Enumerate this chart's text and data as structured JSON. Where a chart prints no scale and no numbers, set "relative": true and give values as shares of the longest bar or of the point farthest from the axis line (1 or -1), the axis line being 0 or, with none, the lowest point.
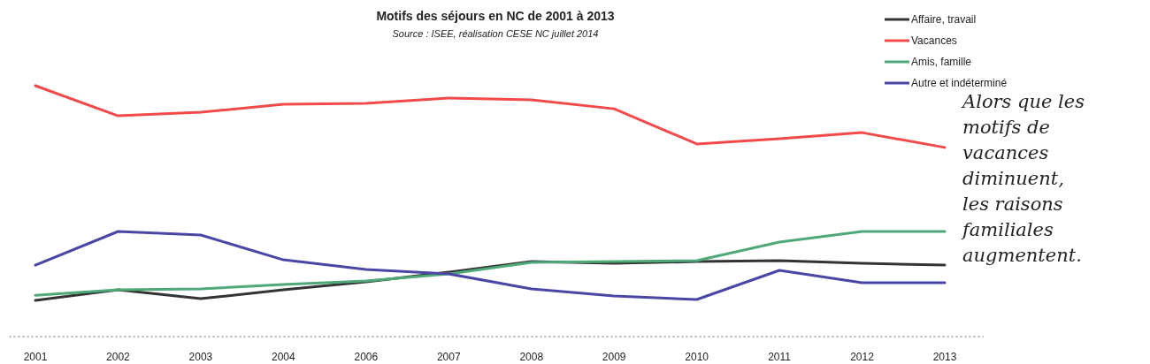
{
  "chart_data": {
    "type": "line",
    "title": "Motifs des séjours en NC de 2001 à 2013",
    "subtitle": "Source : ISEE, réalisation CESE NC juillet 2014",
    "categories": [
      "2001",
      "2002",
      "2003",
      "2004",
      "2006",
      "2007",
      "2008",
      "2009",
      "2010",
      "2011",
      "2012",
      "2013"
    ],
    "relative": true,
    "legend": "top right",
    "grid": false,
    "marker": "none",
    "line_style": "solid",
    "series": [
      {
        "name": "Affaire, travail",
        "color": "#333333",
        "values": [
          0.144,
          0.187,
          0.151,
          0.187,
          0.218,
          0.257,
          0.299,
          0.292,
          0.299,
          0.303,
          0.292,
          0.285
        ]
      },
      {
        "name": "Vacances",
        "color": "#f24a4a",
        "values": [
          1,
          0.88,
          0.894,
          0.926,
          0.93,
          0.951,
          0.944,
          0.908,
          0.768,
          0.789,
          0.813,
          0.754
        ]
      },
      {
        "name": "Amis, famille",
        "color": "#4fa878",
        "values": [
          0.165,
          0.187,
          0.19,
          0.208,
          0.222,
          0.25,
          0.296,
          0.299,
          0.303,
          0.377,
          0.419,
          0.419
        ]
      },
      {
        "name": "Autre et indéterminé",
        "color": "#4a46a6",
        "values": [
          0.285,
          0.419,
          0.405,
          0.306,
          0.268,
          0.25,
          0.19,
          0.162,
          0.148,
          0.264,
          0.215,
          0.215
        ]
      }
    ],
    "annotations": [
      "Alors que les motifs de vacances diminuent, les raisons familiales augmentent."
    ]
  }
}
